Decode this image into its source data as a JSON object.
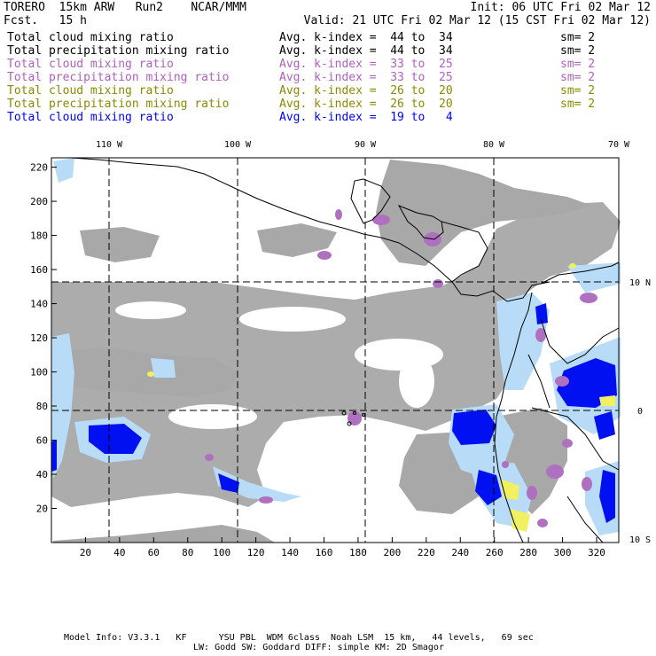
{
  "header": {
    "left1": "TORERO  15km ARW   Run2    NCAR/MMM",
    "left2": "Fcst.   15 h",
    "right1": "Init: 06 UTC Fri 02 Mar 12",
    "right2": "Valid: 21 UTC Fri 02 Mar 12 (15 CST Fri 02 Mar 12)"
  },
  "legend": [
    {
      "field": "Total cloud mixing ratio",
      "kindex": "Avg. k-index =  44 to  34",
      "sm": "sm= 2",
      "color": "#000000"
    },
    {
      "field": "Total precipitation mixing ratio",
      "kindex": "Avg. k-index =  44 to  34",
      "sm": "sm= 2",
      "color": "#000000"
    },
    {
      "field": "Total cloud mixing ratio",
      "kindex": "Avg. k-index =  33 to  25",
      "sm": "sm= 2",
      "color": "#b060c0"
    },
    {
      "field": "Total precipitation mixing ratio",
      "kindex": "Avg. k-index =  33 to  25",
      "sm": "sm= 2",
      "color": "#b060c0"
    },
    {
      "field": "Total cloud mixing ratio",
      "kindex": "Avg. k-index =  26 to  20",
      "sm": "sm= 2",
      "color": "#8a8a00"
    },
    {
      "field": "Total precipitation mixing ratio",
      "kindex": "Avg. k-index =  26 to  20",
      "sm": "sm= 2",
      "color": "#8a8a00"
    },
    {
      "field": "Total cloud mixing ratio",
      "kindex": "Avg. k-index =  19 to   4",
      "sm": "",
      "color": "#0000ff"
    }
  ],
  "map": {
    "lon_labels": [
      "110 W",
      "100 W",
      "90 W",
      "80 W",
      "70 W"
    ],
    "lat_labels": [
      "10 N",
      "0",
      "10 S"
    ],
    "y_ticks": [
      "20",
      "40",
      "60",
      "80",
      "100",
      "120",
      "140",
      "160",
      "180",
      "200",
      "220"
    ],
    "x_ticks": [
      "20",
      "40",
      "60",
      "80",
      "100",
      "120",
      "140",
      "160",
      "180",
      "200",
      "220",
      "240",
      "260",
      "280",
      "300",
      "320"
    ],
    "colors": {
      "gray_cloud": "#a8a8a8",
      "purple": "#b070c0",
      "light_blue": "#b8dcf8",
      "blue": "#0010f0",
      "yellow": "#f0f060",
      "coast": "#000000"
    }
  },
  "footer": {
    "line1": "Model Info: V3.3.1   KF      YSU PBL  WDM 6class  Noah LSM  15 km,   44 levels,   69 sec",
    "line2": "LW: Godd SW: Goddard DIFF: simple KM: 2D Smagor"
  }
}
